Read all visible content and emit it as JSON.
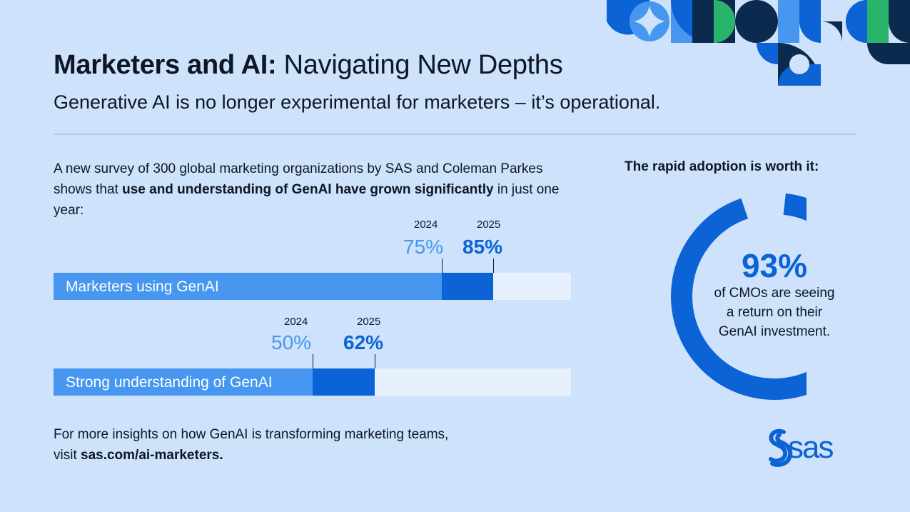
{
  "header": {
    "title_bold": "Marketers and AI:",
    "title_rest": "Navigating New Depths",
    "subtitle": "Generative AI is no longer experimental for marketers – it’s operational."
  },
  "intro": {
    "text_before": "A new survey of 300 global marketing organizations by SAS and Coleman Parkes shows that ",
    "text_bold": "use and understanding of GenAI have grown significantly",
    "text_after": " in just one year:"
  },
  "chart_data": {
    "type": "bar",
    "orientation": "horizontal",
    "xlim": [
      0,
      100
    ],
    "series_names": [
      "2024",
      "2025"
    ],
    "bars": [
      {
        "label": "Marketers using GenAI",
        "year_old": "2024",
        "year_new": "2025",
        "value_old": 75,
        "value_new": 85,
        "label_old": "75%",
        "label_new": "85%"
      },
      {
        "label": "Strong understanding of GenAI",
        "year_old": "2024",
        "year_new": "2025",
        "value_old": 50,
        "value_new": 62,
        "label_old": "50%",
        "label_new": "62%"
      }
    ],
    "colors": {
      "old": "#4796f0",
      "new": "#0b63d6",
      "track": "#e7f1fd"
    }
  },
  "adoption": {
    "heading": "The rapid adoption is worth it:",
    "value": 93,
    "value_label": "93%",
    "line1": "of CMOs are seeing",
    "line2": "a return on their",
    "line3": "GenAI investment.",
    "color": "#0b63d6"
  },
  "footer": {
    "line1": "For more insights on how GenAI is transforming marketing teams,",
    "line2_prefix": "visit ",
    "link": "sas.com/ai-marketers."
  },
  "brand": {
    "logo_text": "sas",
    "colors": {
      "dark": "#0b2a4e",
      "blue": "#0b63d6",
      "mid": "#4796f0",
      "green": "#29b36b",
      "light": "#cfe2fb"
    }
  }
}
